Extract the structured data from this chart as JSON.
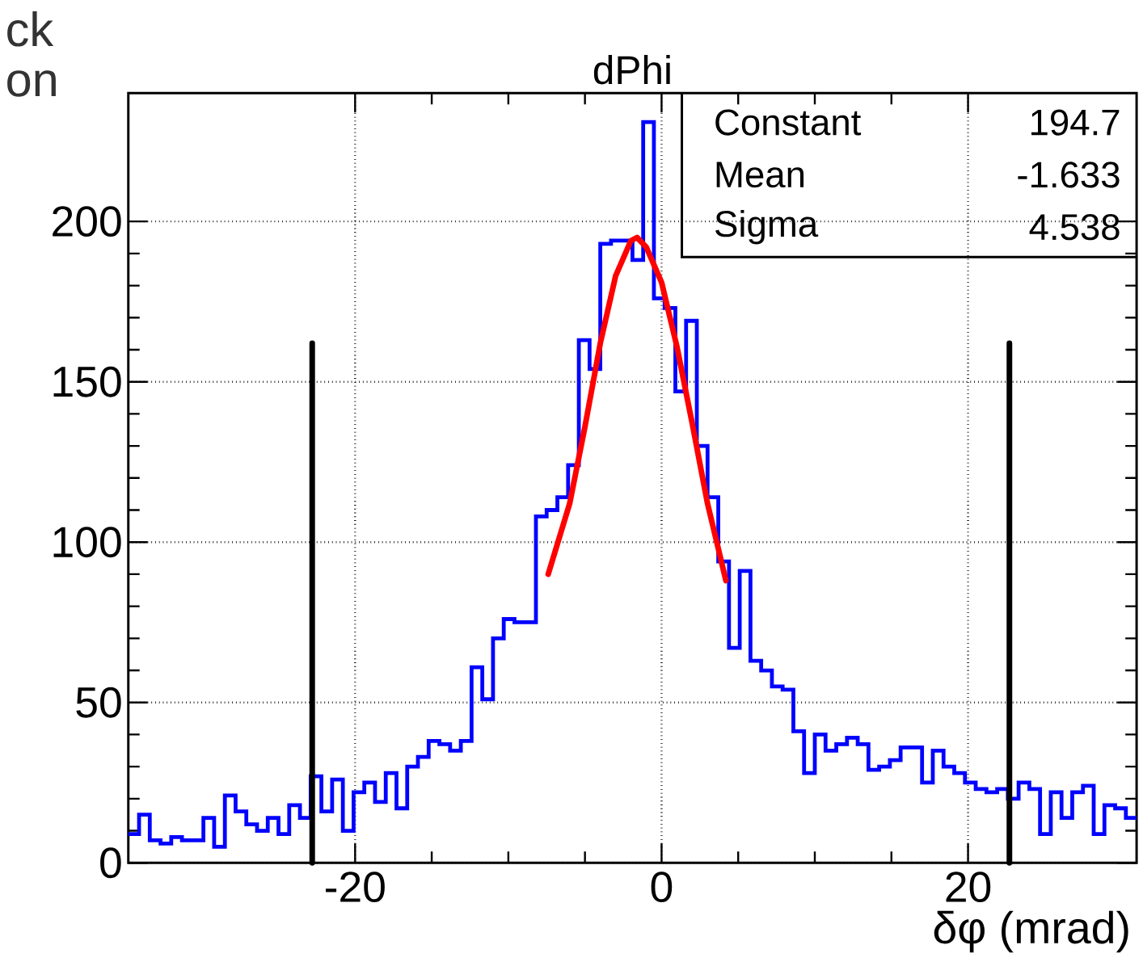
{
  "chart_data": {
    "type": "histogram",
    "title": "dPhi",
    "xlabel": "δφ (mrad)",
    "bins": [
      -34.8,
      -34.1,
      -33.4,
      -32.7,
      -32.0,
      -31.3,
      -30.6,
      -29.9,
      -29.2,
      -28.5,
      -27.8,
      -27.1,
      -26.4,
      -25.7,
      -25.0,
      -24.3,
      -23.6,
      -22.9,
      -22.2,
      -21.5,
      -20.8,
      -20.1,
      -19.4,
      -18.7,
      -18.0,
      -17.3,
      -16.6,
      -15.9,
      -15.2,
      -14.5,
      -13.8,
      -13.1,
      -12.4,
      -11.7,
      -11.0,
      -10.3,
      -9.6,
      -8.9,
      -8.2,
      -7.5,
      -6.8,
      -6.1,
      -5.4,
      -4.7,
      -4.0,
      -3.3,
      -2.6,
      -1.9,
      -1.2,
      -0.5,
      0.2,
      0.9,
      1.6,
      2.3,
      3.0,
      3.7,
      4.4,
      5.1,
      5.8,
      6.5,
      7.2,
      7.9,
      8.6,
      9.3,
      10.0,
      10.7,
      11.4,
      12.1,
      12.8,
      13.5,
      14.2,
      14.9,
      15.6,
      16.3,
      17.0,
      17.7,
      18.4,
      19.1,
      19.8,
      20.5,
      21.2,
      21.9,
      22.6,
      23.3,
      24.0,
      24.7,
      25.4,
      26.1,
      26.8,
      27.5,
      28.2,
      28.9,
      29.6,
      30.3,
      31.0
    ],
    "values": [
      9,
      15,
      7,
      6,
      8,
      7,
      7,
      14,
      5,
      21,
      16,
      12,
      10,
      14,
      9,
      18,
      14,
      27,
      16,
      26,
      10,
      22,
      25,
      19,
      28,
      17,
      30,
      33,
      38,
      37,
      35,
      38,
      61,
      51,
      70,
      76,
      75,
      75,
      108,
      110,
      114,
      124,
      163,
      154,
      193,
      194,
      194,
      188,
      231,
      176,
      173,
      147,
      169,
      130,
      114,
      94,
      67,
      91,
      63,
      60,
      55,
      54,
      41,
      28,
      40,
      35,
      37,
      39,
      37,
      29,
      30,
      32,
      36,
      36,
      25,
      35,
      30,
      28,
      25,
      23,
      22,
      23,
      20,
      25,
      23,
      9,
      22,
      14,
      22,
      24,
      9,
      18,
      17,
      14
    ],
    "color": "#0000ff",
    "series": [
      {
        "type": "line",
        "color": "#ff0000",
        "x": [
          -7.4,
          -6.0,
          -5.0,
          -4.0,
          -3.0,
          -2.0,
          -1.6,
          -1.0,
          0.0,
          1.0,
          2.0,
          3.0,
          4.2
        ],
        "values": [
          90,
          112,
          136,
          162,
          183,
          194,
          195,
          192,
          181,
          161,
          137,
          112,
          88
        ]
      },
      {
        "type": "line",
        "color": "#000000",
        "x": [
          -22.8,
          -22.8
        ],
        "values": [
          0,
          162
        ]
      },
      {
        "type": "line",
        "color": "#000000",
        "x": [
          22.7,
          22.7
        ],
        "values": [
          0,
          162
        ]
      }
    ],
    "xlim": [
      -34.8,
      31.0
    ],
    "ylim": [
      0,
      240
    ],
    "xticks": [
      -20,
      0,
      20
    ],
    "yticks": [
      0,
      50,
      100,
      150,
      200
    ],
    "grid": true,
    "annotations": [
      "Constant",
      "194.7",
      "Mean",
      "-1.633",
      "Sigma",
      "4.538",
      "ck",
      "on"
    ]
  }
}
